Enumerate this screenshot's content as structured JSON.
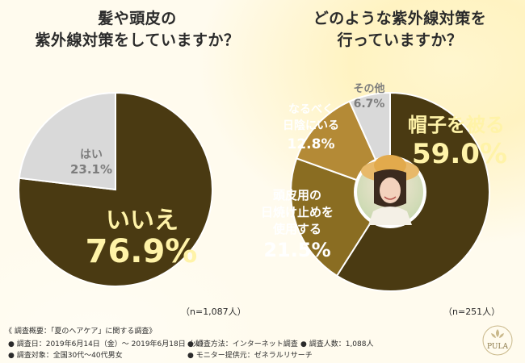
{
  "charts": {
    "left": {
      "title_line1": "髪や頭皮の",
      "title_line2": "紫外線対策をしていますか？",
      "n_label": "（n=1,087人）"
    },
    "right": {
      "title_line1": "どのような紫外線対策を",
      "title_line2": "行っていますか？",
      "n_label": "（n=251人）"
    }
  },
  "footer": {
    "title": "《 調査概要：「夏のヘアケア」に関する調査》",
    "date": "● 調査日：2019年6月14日（金）～ 2019年6月18日（火）",
    "method": "● 調査方法：インターネット調査",
    "count": "● 調査人数：1,088人",
    "target": "● 調査対象：全国30代～40代男女",
    "provider": "● モニター提供元：ゼネラルリサーチ"
  },
  "logo": {
    "text": "PULA"
  },
  "colors": {
    "dark_brown": "#4a3a12",
    "mid_brown": "#8a6d22",
    "light_brown": "#b48a36",
    "gray": "#d9d9d9",
    "gold_text": "#fff3a8",
    "gray_text": "#7d7d7d"
  },
  "chart_data": [
    {
      "type": "pie",
      "title": "髪や頭皮の紫外線対策をしていますか？",
      "n": "（n=1,087人）",
      "slices": [
        {
          "label": "いいえ",
          "value": 76.9,
          "display": "76.9%"
        },
        {
          "label": "はい",
          "value": 23.1,
          "display": "23.1%"
        }
      ]
    },
    {
      "type": "pie",
      "title": "どのような紫外線対策を行っていますか？",
      "n": "（n=251人）",
      "slices": [
        {
          "label": "帽子を被る",
          "value": 59.0,
          "display": "59.0%"
        },
        {
          "label": "頭皮用の日焼け止めを使用する",
          "label_lines": [
            "頭皮用の",
            "日焼け止めを",
            "使用する"
          ],
          "value": 21.5,
          "display": "21.5%"
        },
        {
          "label": "なるべく日陰にいる",
          "label_lines": [
            "なるべく",
            "日陰にいる"
          ],
          "value": 12.8,
          "display": "12.8%"
        },
        {
          "label": "その他",
          "value": 6.7,
          "display": "6.7%"
        }
      ]
    }
  ]
}
